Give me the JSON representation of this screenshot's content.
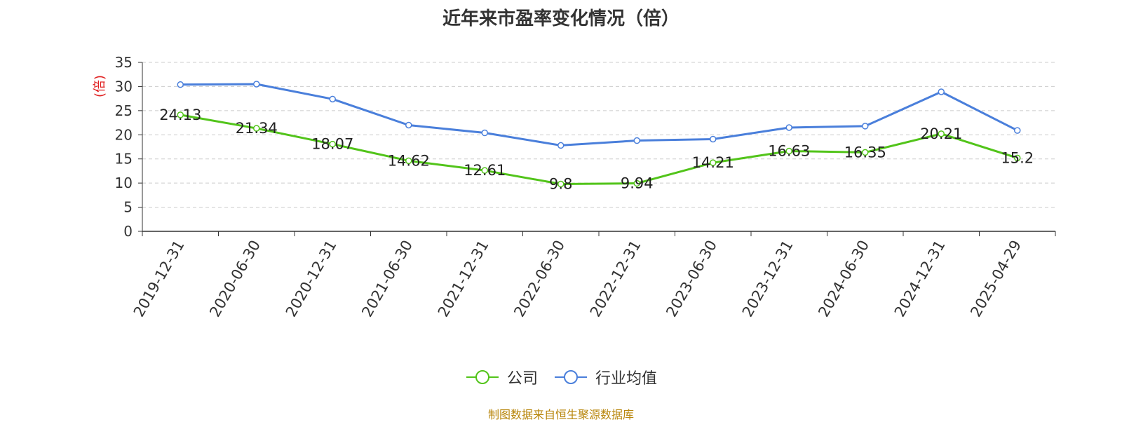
{
  "title": "近年来市盈率变化情况（倍）",
  "source_note": "制图数据来自恒生聚源数据库",
  "colors": {
    "company": "#52c41a",
    "industry": "#4a7fdb",
    "unit_label": "#e02020",
    "source": "#b8860b"
  },
  "chart_data": {
    "type": "line",
    "title": "近年来市盈率变化情况（倍）",
    "ylabel": "(倍)",
    "xlabel": "",
    "ylim": [
      0,
      35
    ],
    "yticks": [
      0,
      5,
      10,
      15,
      20,
      25,
      30,
      35
    ],
    "grid": true,
    "legend_position": "bottom",
    "categories": [
      "2019-12-31",
      "2020-06-30",
      "2020-12-31",
      "2021-06-30",
      "2021-12-31",
      "2022-06-30",
      "2022-12-31",
      "2023-06-30",
      "2023-12-31",
      "2024-06-30",
      "2024-12-31",
      "2025-04-29"
    ],
    "series": [
      {
        "name": "公司",
        "values": [
          24.13,
          21.34,
          18.07,
          14.62,
          12.61,
          9.8,
          9.94,
          14.21,
          16.63,
          16.35,
          20.21,
          15.2
        ],
        "labels": [
          "24.13",
          "21.34",
          "18.07",
          "14.62",
          "12.61",
          "9.8",
          "9.94",
          "14.21",
          "16.63",
          "16.35",
          "20.21",
          "15.2"
        ]
      },
      {
        "name": "行业均值",
        "values": [
          30.4,
          30.5,
          27.4,
          22.0,
          20.4,
          17.8,
          18.8,
          19.1,
          21.5,
          21.8,
          28.9,
          20.9
        ]
      }
    ]
  }
}
